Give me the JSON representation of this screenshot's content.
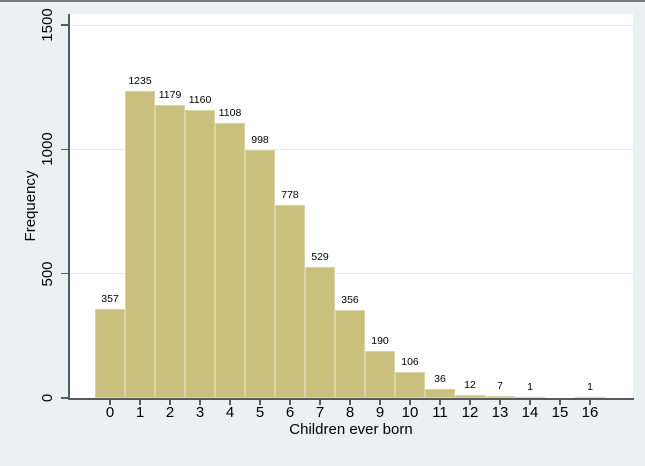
{
  "chart_data": {
    "type": "bar",
    "title": "",
    "xlabel": "Children ever born",
    "ylabel": "Frequency",
    "categories": [
      "0",
      "1",
      "2",
      "3",
      "4",
      "5",
      "6",
      "7",
      "8",
      "9",
      "10",
      "11",
      "12",
      "13",
      "14",
      "15",
      "16"
    ],
    "values": [
      357,
      1235,
      1179,
      1160,
      1108,
      998,
      778,
      529,
      356,
      190,
      106,
      36,
      12,
      7,
      1,
      0,
      1
    ],
    "value_labels_shown": true,
    "y_ticks": [
      0,
      500,
      1000,
      1500
    ],
    "ylim": [
      0,
      1545
    ],
    "grid": true,
    "legend": "none",
    "colors": {
      "bar_fill": "#C9C07D",
      "bar_border": "#DAD4A2",
      "plot_background": "#FFFFFF",
      "outer_background": "#EAF1F2",
      "gridline": "#E4EEEF",
      "axis": "#565B5E",
      "text": "#000000"
    }
  }
}
